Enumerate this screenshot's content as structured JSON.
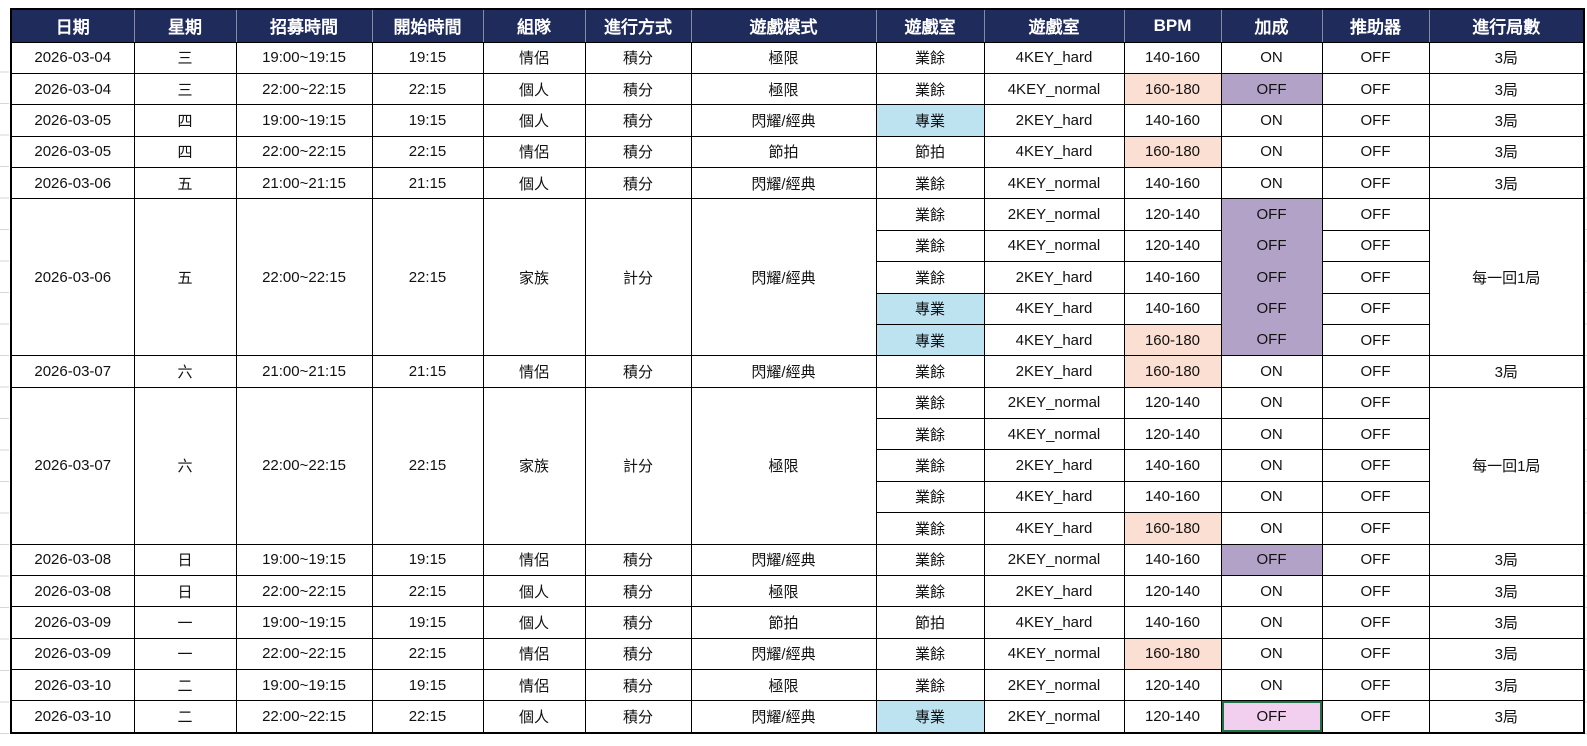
{
  "colors": {
    "header_bg": "#1F2B5B",
    "header_text": "#FFFFFF",
    "grid_border": "#000000",
    "peach_highlight": "#FBDFD3",
    "purple_highlight": "#B3A2C7",
    "blue_highlight": "#BDE3F1",
    "pink_selected_fill": "#F2CEEF",
    "selection_border_green": "#1E7145"
  },
  "header": {
    "columns": [
      "日期",
      "星期",
      "招募時間",
      "開始時間",
      "組隊",
      "進行方式",
      "遊戲模式",
      "遊戲室",
      "遊戲室",
      "BPM",
      "加成",
      "推助器",
      "進行局數"
    ]
  },
  "groups": [
    {
      "date": "2026-03-04",
      "weekday": "三",
      "recruit_time": "19:00~19:15",
      "start_time": "19:15",
      "team": "情侶",
      "method": "積分",
      "mode": "極限",
      "rounds": "3局",
      "bonus_block": false,
      "sessions": [
        {
          "room": "業餘",
          "room_highlight": null,
          "room_detail": "4KEY_hard",
          "bpm": "140-160",
          "bpm_highlight": null,
          "bonus": "ON",
          "bonus_highlight": null,
          "booster": "OFF"
        }
      ]
    },
    {
      "date": "2026-03-04",
      "weekday": "三",
      "recruit_time": "22:00~22:15",
      "start_time": "22:15",
      "team": "個人",
      "method": "積分",
      "mode": "極限",
      "rounds": "3局",
      "bonus_block": false,
      "sessions": [
        {
          "room": "業餘",
          "room_highlight": null,
          "room_detail": "4KEY_normal",
          "bpm": "160-180",
          "bpm_highlight": "peach",
          "bonus": "OFF",
          "bonus_highlight": "purple",
          "booster": "OFF"
        }
      ]
    },
    {
      "date": "2026-03-05",
      "weekday": "四",
      "recruit_time": "19:00~19:15",
      "start_time": "19:15",
      "team": "個人",
      "method": "積分",
      "mode": "閃耀/經典",
      "rounds": "3局",
      "bonus_block": false,
      "sessions": [
        {
          "room": "專業",
          "room_highlight": "blue",
          "room_detail": "2KEY_hard",
          "bpm": "140-160",
          "bpm_highlight": null,
          "bonus": "ON",
          "bonus_highlight": null,
          "booster": "OFF"
        }
      ]
    },
    {
      "date": "2026-03-05",
      "weekday": "四",
      "recruit_time": "22:00~22:15",
      "start_time": "22:15",
      "team": "情侶",
      "method": "積分",
      "mode": "節拍",
      "rounds": "3局",
      "bonus_block": false,
      "sessions": [
        {
          "room": "節拍",
          "room_highlight": null,
          "room_detail": "4KEY_hard",
          "bpm": "160-180",
          "bpm_highlight": "peach",
          "bonus": "ON",
          "bonus_highlight": null,
          "booster": "OFF"
        }
      ]
    },
    {
      "date": "2026-03-06",
      "weekday": "五",
      "recruit_time": "21:00~21:15",
      "start_time": "21:15",
      "team": "個人",
      "method": "積分",
      "mode": "閃耀/經典",
      "rounds": "3局",
      "bonus_block": false,
      "sessions": [
        {
          "room": "業餘",
          "room_highlight": null,
          "room_detail": "4KEY_normal",
          "bpm": "140-160",
          "bpm_highlight": null,
          "bonus": "ON",
          "bonus_highlight": null,
          "booster": "OFF"
        }
      ]
    },
    {
      "date": "2026-03-06",
      "weekday": "五",
      "recruit_time": "22:00~22:15",
      "start_time": "22:15",
      "team": "家族",
      "method": "計分",
      "mode": "閃耀/經典",
      "rounds": "每一回1局",
      "bonus_block": true,
      "sessions": [
        {
          "room": "業餘",
          "room_highlight": null,
          "room_detail": "2KEY_normal",
          "bpm": "120-140",
          "bpm_highlight": null,
          "bonus": "OFF",
          "bonus_highlight": "purple",
          "booster": "OFF"
        },
        {
          "room": "業餘",
          "room_highlight": null,
          "room_detail": "4KEY_normal",
          "bpm": "120-140",
          "bpm_highlight": null,
          "bonus": "OFF",
          "bonus_highlight": "purple",
          "booster": "OFF"
        },
        {
          "room": "業餘",
          "room_highlight": null,
          "room_detail": "2KEY_hard",
          "bpm": "140-160",
          "bpm_highlight": null,
          "bonus": "OFF",
          "bonus_highlight": "purple",
          "booster": "OFF"
        },
        {
          "room": "專業",
          "room_highlight": "blue",
          "room_detail": "4KEY_hard",
          "bpm": "140-160",
          "bpm_highlight": null,
          "bonus": "OFF",
          "bonus_highlight": "purple",
          "booster": "OFF"
        },
        {
          "room": "專業",
          "room_highlight": "blue",
          "room_detail": "4KEY_hard",
          "bpm": "160-180",
          "bpm_highlight": "peach",
          "bonus": "OFF",
          "bonus_highlight": "purple",
          "booster": "OFF"
        }
      ]
    },
    {
      "date": "2026-03-07",
      "weekday": "六",
      "recruit_time": "21:00~21:15",
      "start_time": "21:15",
      "team": "情侶",
      "method": "積分",
      "mode": "閃耀/經典",
      "rounds": "3局",
      "bonus_block": false,
      "sessions": [
        {
          "room": "業餘",
          "room_highlight": null,
          "room_detail": "2KEY_hard",
          "bpm": "160-180",
          "bpm_highlight": "peach",
          "bonus": "ON",
          "bonus_highlight": null,
          "booster": "OFF"
        }
      ]
    },
    {
      "date": "2026-03-07",
      "weekday": "六",
      "recruit_time": "22:00~22:15",
      "start_time": "22:15",
      "team": "家族",
      "method": "計分",
      "mode": "極限",
      "rounds": "每一回1局",
      "bonus_block": false,
      "sessions": [
        {
          "room": "業餘",
          "room_highlight": null,
          "room_detail": "2KEY_normal",
          "bpm": "120-140",
          "bpm_highlight": null,
          "bonus": "ON",
          "bonus_highlight": null,
          "booster": "OFF"
        },
        {
          "room": "業餘",
          "room_highlight": null,
          "room_detail": "4KEY_normal",
          "bpm": "120-140",
          "bpm_highlight": null,
          "bonus": "ON",
          "bonus_highlight": null,
          "booster": "OFF"
        },
        {
          "room": "業餘",
          "room_highlight": null,
          "room_detail": "2KEY_hard",
          "bpm": "140-160",
          "bpm_highlight": null,
          "bonus": "ON",
          "bonus_highlight": null,
          "booster": "OFF"
        },
        {
          "room": "業餘",
          "room_highlight": null,
          "room_detail": "4KEY_hard",
          "bpm": "140-160",
          "bpm_highlight": null,
          "bonus": "ON",
          "bonus_highlight": null,
          "booster": "OFF"
        },
        {
          "room": "業餘",
          "room_highlight": null,
          "room_detail": "4KEY_hard",
          "bpm": "160-180",
          "bpm_highlight": "peach",
          "bonus": "ON",
          "bonus_highlight": null,
          "booster": "OFF"
        }
      ]
    },
    {
      "date": "2026-03-08",
      "weekday": "日",
      "recruit_time": "19:00~19:15",
      "start_time": "19:15",
      "team": "情侶",
      "method": "積分",
      "mode": "閃耀/經典",
      "rounds": "3局",
      "bonus_block": false,
      "sessions": [
        {
          "room": "業餘",
          "room_highlight": null,
          "room_detail": "2KEY_normal",
          "bpm": "140-160",
          "bpm_highlight": null,
          "bonus": "OFF",
          "bonus_highlight": "purple",
          "booster": "OFF"
        }
      ]
    },
    {
      "date": "2026-03-08",
      "weekday": "日",
      "recruit_time": "22:00~22:15",
      "start_time": "22:15",
      "team": "個人",
      "method": "積分",
      "mode": "極限",
      "rounds": "3局",
      "bonus_block": false,
      "sessions": [
        {
          "room": "業餘",
          "room_highlight": null,
          "room_detail": "2KEY_hard",
          "bpm": "120-140",
          "bpm_highlight": null,
          "bonus": "ON",
          "bonus_highlight": null,
          "booster": "OFF"
        }
      ]
    },
    {
      "date": "2026-03-09",
      "weekday": "一",
      "recruit_time": "19:00~19:15",
      "start_time": "19:15",
      "team": "個人",
      "method": "積分",
      "mode": "節拍",
      "rounds": "3局",
      "bonus_block": false,
      "sessions": [
        {
          "room": "節拍",
          "room_highlight": null,
          "room_detail": "4KEY_hard",
          "bpm": "140-160",
          "bpm_highlight": null,
          "bonus": "ON",
          "bonus_highlight": null,
          "booster": "OFF"
        }
      ]
    },
    {
      "date": "2026-03-09",
      "weekday": "一",
      "recruit_time": "22:00~22:15",
      "start_time": "22:15",
      "team": "情侶",
      "method": "積分",
      "mode": "閃耀/經典",
      "rounds": "3局",
      "bonus_block": false,
      "sessions": [
        {
          "room": "業餘",
          "room_highlight": null,
          "room_detail": "4KEY_normal",
          "bpm": "160-180",
          "bpm_highlight": "peach",
          "bonus": "ON",
          "bonus_highlight": null,
          "booster": "OFF"
        }
      ]
    },
    {
      "date": "2026-03-10",
      "weekday": "二",
      "recruit_time": "19:00~19:15",
      "start_time": "19:15",
      "team": "情侶",
      "method": "積分",
      "mode": "極限",
      "rounds": "3局",
      "bonus_block": false,
      "sessions": [
        {
          "room": "業餘",
          "room_highlight": null,
          "room_detail": "2KEY_normal",
          "bpm": "120-140",
          "bpm_highlight": null,
          "bonus": "ON",
          "bonus_highlight": null,
          "booster": "OFF"
        }
      ]
    },
    {
      "date": "2026-03-10",
      "weekday": "二",
      "recruit_time": "22:00~22:15",
      "start_time": "22:15",
      "team": "個人",
      "method": "積分",
      "mode": "閃耀/經典",
      "rounds": "3局",
      "bonus_block": false,
      "sessions": [
        {
          "room": "專業",
          "room_highlight": "blue",
          "room_detail": "2KEY_normal",
          "bpm": "120-140",
          "bpm_highlight": null,
          "bonus": "OFF",
          "bonus_highlight": "pink-selected",
          "booster": "OFF"
        }
      ]
    }
  ]
}
